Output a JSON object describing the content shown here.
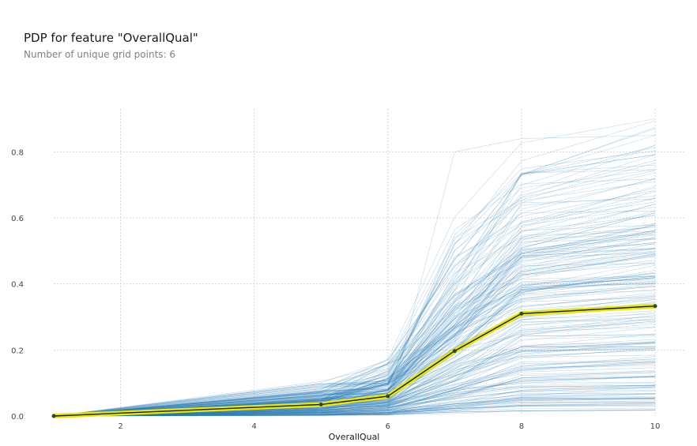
{
  "chart_data": {
    "type": "line",
    "title": "PDP for feature \"OverallQual\"",
    "subtitle": "Number of unique grid points: 6",
    "xlabel": "OverallQual",
    "ylabel": "",
    "xlim": [
      1,
      10
    ],
    "ylim": [
      0,
      0.93
    ],
    "x_ticks": [
      2,
      4,
      6,
      8,
      10
    ],
    "y_ticks": [
      0.0,
      0.2,
      0.4,
      0.6,
      0.8
    ],
    "x_tick_labels": [
      "2",
      "4",
      "6",
      "8",
      "10"
    ],
    "y_tick_labels": [
      "0.0",
      "0.2",
      "0.4",
      "0.6",
      "0.8"
    ],
    "grid": true,
    "x": [
      1,
      5,
      6,
      7,
      8,
      10
    ],
    "series": [
      {
        "values": [
          0.0,
          0.035,
          0.06,
          0.197,
          0.31,
          0.333
        ]
      }
    ],
    "ice_lines": {
      "count": 220,
      "color": "#1f77b4",
      "example_curves": [
        [
          0,
          0.01,
          0.02,
          0.8,
          0.84,
          0.85
        ],
        [
          0,
          0.06,
          0.09,
          0.52,
          0.73,
          0.85
        ],
        [
          0,
          0.03,
          0.08,
          0.38,
          0.57,
          0.68
        ],
        [
          0,
          0.02,
          0.05,
          0.2,
          0.3,
          0.33
        ],
        [
          0,
          0.01,
          0.02,
          0.08,
          0.15,
          0.18
        ],
        [
          0,
          0.005,
          0.01,
          0.03,
          0.06,
          0.09
        ]
      ]
    },
    "pdp_line_color": "#1a1a1a",
    "pdp_band_color": "#e8e800",
    "pdp_marker_color": "#2e4a3a"
  }
}
